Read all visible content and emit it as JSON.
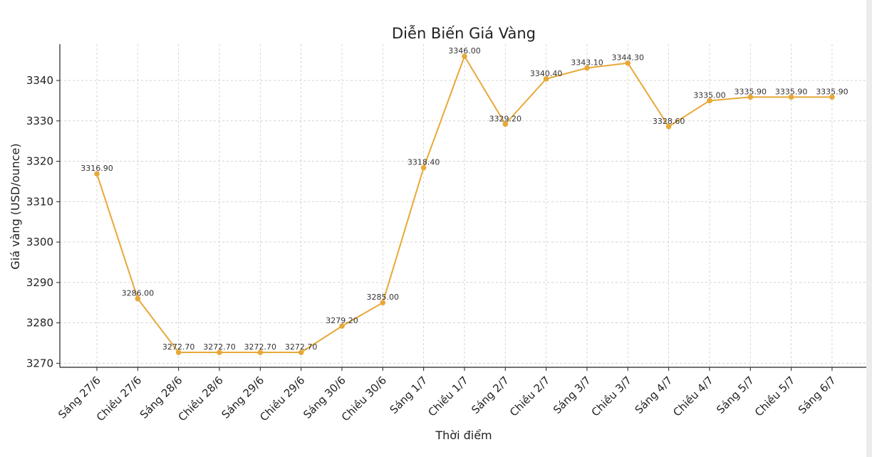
{
  "chart_data": {
    "type": "line",
    "title": "Diễn Biến Giá Vàng",
    "xlabel": "Thời điểm",
    "ylabel": "Giá vàng (USD/ounce)",
    "categories": [
      "Sáng 27/6",
      "Chiều 27/6",
      "Sáng 28/6",
      "Chiều 28/6",
      "Sáng 29/6",
      "Chiều 29/6",
      "Sáng 30/6",
      "Chiều 30/6",
      "Sáng 1/7",
      "Chiều 1/7",
      "Sáng 2/7",
      "Chiều 2/7",
      "Sáng 3/7",
      "Chiều 3/7",
      "Sáng 4/7",
      "Chiều 4/7",
      "Sáng 5/7",
      "Chiều 5/7",
      "Sáng 6/7"
    ],
    "values": [
      3316.9,
      3286.0,
      3272.7,
      3272.7,
      3272.7,
      3272.7,
      3279.2,
      3285.0,
      3318.4,
      3346.0,
      3329.2,
      3340.4,
      3343.1,
      3344.3,
      3328.6,
      3335.0,
      3335.9,
      3335.9,
      3335.9
    ],
    "value_labels": [
      "3316.90",
      "3286.00",
      "3272.70",
      "3272.70",
      "3272.70",
      "3272.70",
      "3279.20",
      "3285.00",
      "3318.40",
      "3346.00",
      "3329.20",
      "3340.40",
      "3343.10",
      "3344.30",
      "3328.60",
      "3335.00",
      "3335.90",
      "3335.90",
      "3335.90"
    ],
    "yticks": [
      3270,
      3280,
      3290,
      3300,
      3310,
      3320,
      3330,
      3340
    ],
    "ylim": [
      3269,
      3349
    ],
    "grid": true,
    "color": "#e8a838"
  }
}
